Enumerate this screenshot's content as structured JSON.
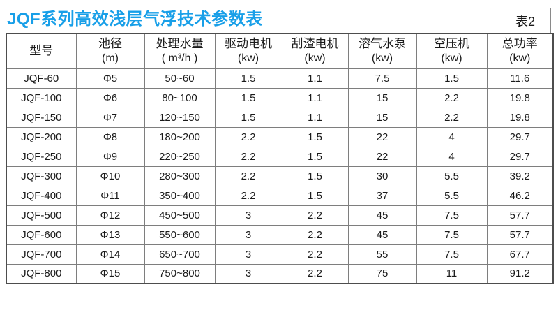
{
  "page": {
    "title": "JQF系列高效浅层气浮技术参数表",
    "table_label": "表2"
  },
  "colors": {
    "title_blue": "#189fe8",
    "grid_line": "#7e7e7e",
    "outer_border": "#4d4d4d",
    "text": "#1a1a1a",
    "background": "#ffffff"
  },
  "table": {
    "columns": [
      {
        "name": "型号",
        "unit": ""
      },
      {
        "name": "池径",
        "unit": "(m)"
      },
      {
        "name": "处理水量",
        "unit": "( m³/h )"
      },
      {
        "name": "驱动电机",
        "unit": "(kw)"
      },
      {
        "name": "刮渣电机",
        "unit": "(kw)"
      },
      {
        "name": "溶气水泵",
        "unit": "(kw)"
      },
      {
        "name": "空压机",
        "unit": "(kw)"
      },
      {
        "name": "总功率",
        "unit": "(kw)"
      }
    ],
    "rows": [
      [
        "JQF-60",
        "Φ5",
        "50~60",
        "1.5",
        "1.1",
        "7.5",
        "1.5",
        "11.6"
      ],
      [
        "JQF-100",
        "Φ6",
        "80~100",
        "1.5",
        "1.1",
        "15",
        "2.2",
        "19.8"
      ],
      [
        "JQF-150",
        "Φ7",
        "120~150",
        "1.5",
        "1.1",
        "15",
        "2.2",
        "19.8"
      ],
      [
        "JQF-200",
        "Φ8",
        "180~200",
        "2.2",
        "1.5",
        "22",
        "4",
        "29.7"
      ],
      [
        "JQF-250",
        "Φ9",
        "220~250",
        "2.2",
        "1.5",
        "22",
        "4",
        "29.7"
      ],
      [
        "JQF-300",
        "Φ10",
        "280~300",
        "2.2",
        "1.5",
        "30",
        "5.5",
        "39.2"
      ],
      [
        "JQF-400",
        "Φ11",
        "350~400",
        "2.2",
        "1.5",
        "37",
        "5.5",
        "46.2"
      ],
      [
        "JQF-500",
        "Φ12",
        "450~500",
        "3",
        "2.2",
        "45",
        "7.5",
        "57.7"
      ],
      [
        "JQF-600",
        "Φ13",
        "550~600",
        "3",
        "2.2",
        "45",
        "7.5",
        "57.7"
      ],
      [
        "JQF-700",
        "Φ14",
        "650~700",
        "3",
        "2.2",
        "55",
        "7.5",
        "67.7"
      ],
      [
        "JQF-800",
        "Φ15",
        "750~800",
        "3",
        "2.2",
        "75",
        "11",
        "91.2"
      ]
    ]
  }
}
